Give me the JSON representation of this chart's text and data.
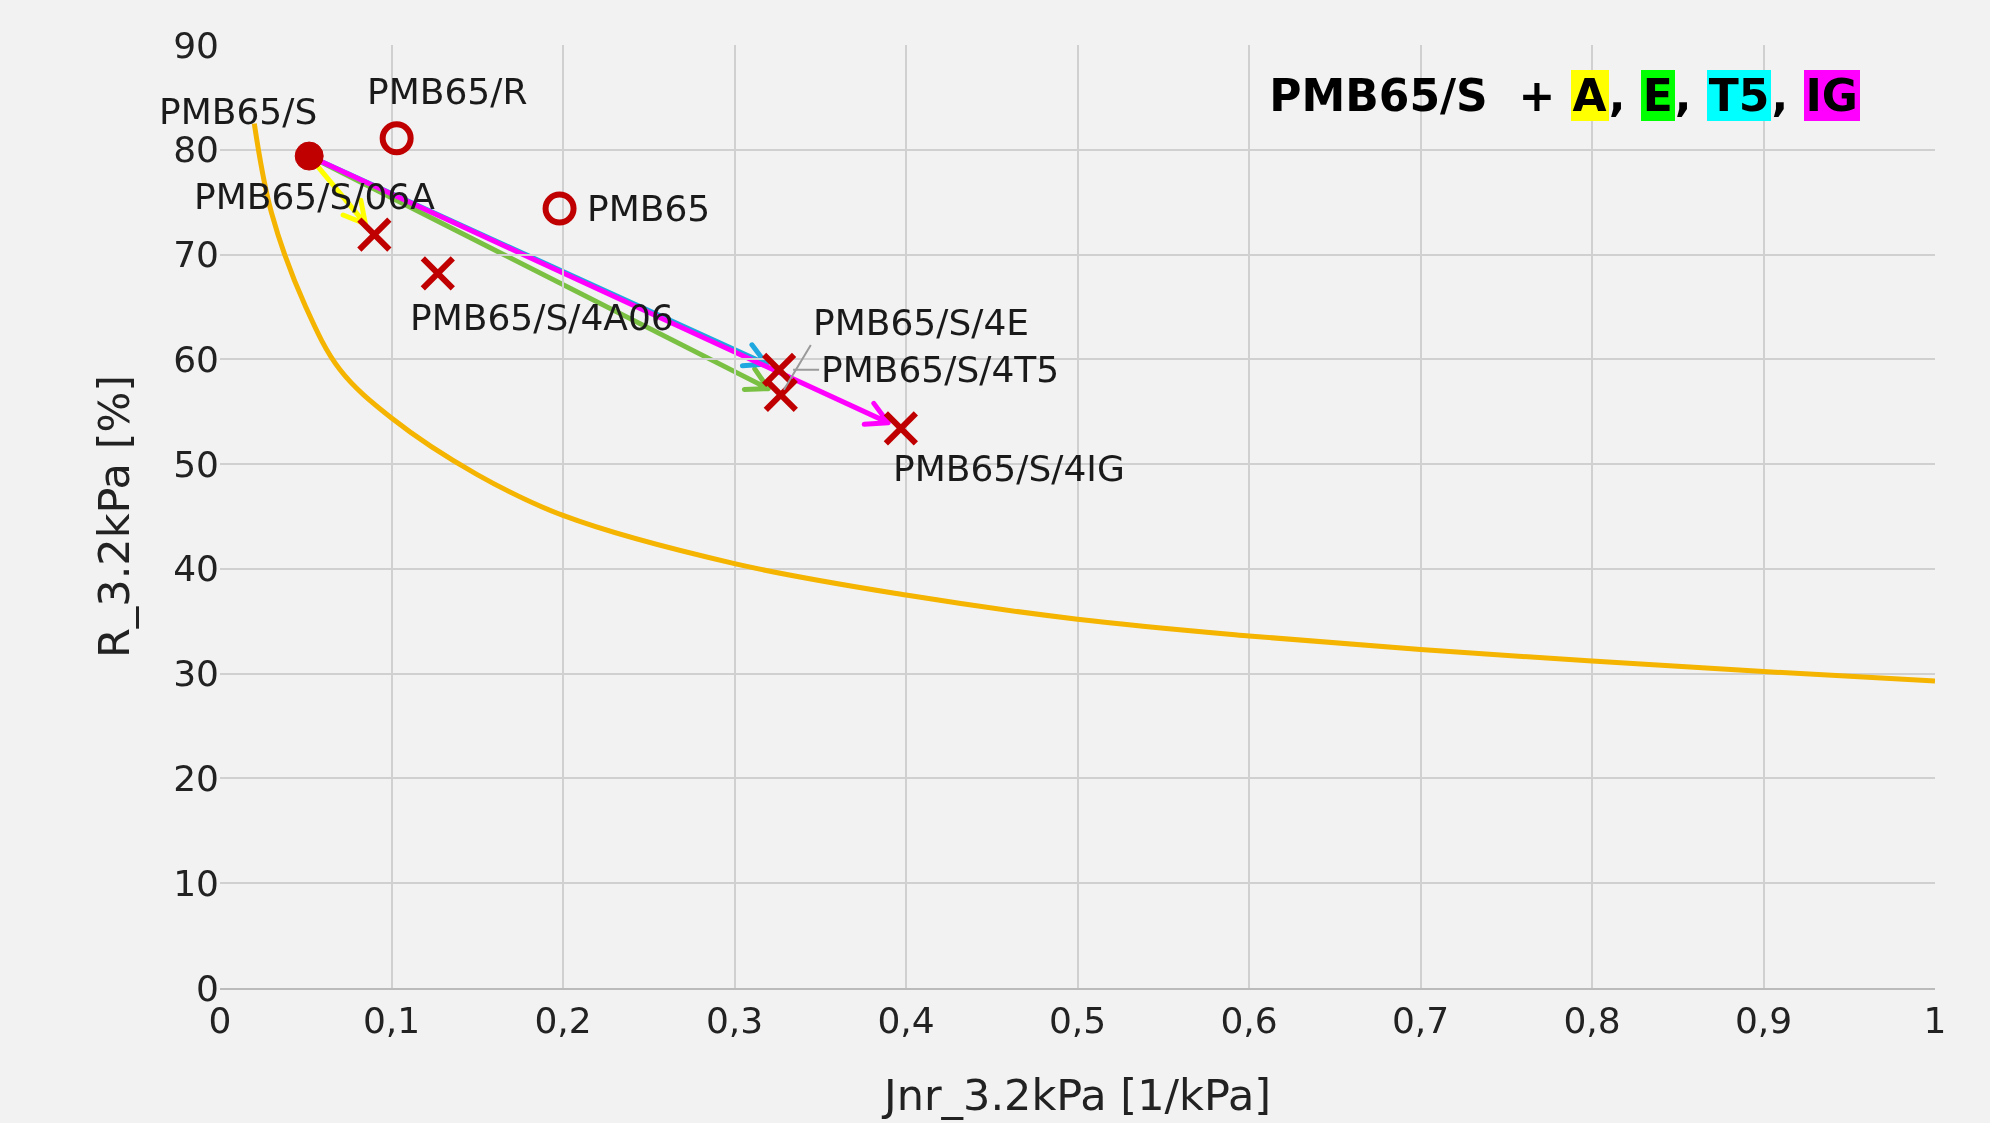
{
  "chart_data": {
    "type": "scatter",
    "xlabel": "Jnr_3.2kPa [1/kPa]",
    "ylabel": "R_3.2kPa [%]",
    "xlim": [
      0,
      1
    ],
    "ylim": [
      0,
      90
    ],
    "xticks": [
      0,
      {
        "value": 0.1,
        "label": "0,1"
      },
      {
        "value": 0.2,
        "label": "0,2"
      },
      {
        "value": 0.3,
        "label": "0,3"
      },
      {
        "value": 0.4,
        "label": "0,4"
      },
      {
        "value": 0.5,
        "label": "0,5"
      },
      {
        "value": 0.6,
        "label": "0,6"
      },
      {
        "value": 0.7,
        "label": "0,7"
      },
      {
        "value": 0.8,
        "label": "0,8"
      },
      {
        "value": 0.9,
        "label": "0,9"
      },
      1
    ],
    "yticks": [
      0,
      10,
      20,
      30,
      40,
      50,
      60,
      70,
      80,
      90
    ],
    "grid": true,
    "legend": false,
    "annotations": [
      "PMB65/S  + A, E, T5, IG"
    ],
    "series": [
      {
        "type": "line",
        "color": "#f4b400",
        "marker": "none",
        "x": [
          0.02,
          0.03,
          0.05,
          0.07,
          0.1,
          0.15,
          0.2,
          0.3,
          0.4,
          0.5,
          0.6,
          0.7,
          0.8,
          0.9,
          1
        ],
        "values": [
          82.5,
          74,
          65,
          59,
          54.4,
          49,
          45.1,
          40.5,
          37.5,
          35.2,
          33.6,
          32.3,
          31.2,
          30.2,
          29.3
        ]
      },
      {
        "name": "PMB65/S",
        "color": "#c00000",
        "marker": "circle",
        "x": [
          0.052
        ],
        "values": [
          79.4
        ]
      },
      {
        "name": "PMB65/R",
        "color": "#c00000",
        "marker": "circle-open",
        "x": [
          0.103
        ],
        "values": [
          81.1
        ]
      },
      {
        "name": "PMB65",
        "color": "#c00000",
        "marker": "circle-open",
        "x": [
          0.198
        ],
        "values": [
          74.4
        ]
      },
      {
        "name": "PMB65/S/06A",
        "color": "#c00000",
        "marker": "cross",
        "x": [
          0.09
        ],
        "values": [
          71.9
        ]
      },
      {
        "name": "PMB65/S/4A06",
        "color": "#c00000",
        "marker": "cross",
        "x": [
          0.127
        ],
        "values": [
          68.2
        ]
      },
      {
        "name": "PMB65/S/4E",
        "color": "#c00000",
        "marker": "cross",
        "x": [
          0.327
        ],
        "values": [
          56.6
        ]
      },
      {
        "name": "PMB65/S/4T5",
        "color": "#c00000",
        "marker": "cross",
        "x": [
          0.326
        ],
        "values": [
          59.0
        ]
      },
      {
        "name": "PMB65/S/4IG",
        "color": "#c00000",
        "marker": "cross",
        "x": [
          0.397
        ],
        "values": [
          53.4
        ]
      }
    ]
  }
}
